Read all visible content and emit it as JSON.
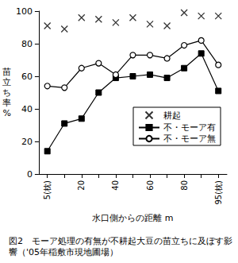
{
  "chart_data": {
    "type": "line",
    "title": "図2　モーア処理の有無が不耕起大豆の苗立ちに及ぼす影響（'05年稲敷市現地圃場）",
    "x_label": "水口側からの距離 m",
    "y_label": "苗立ち率%",
    "categories": [
      "5(枕)",
      null,
      "20",
      null,
      "40",
      null,
      "60",
      null,
      "80",
      null,
      "95(枕)"
    ],
    "series": [
      {
        "name": "耕起",
        "type": "scatter",
        "marker": "x",
        "color": "#000000",
        "values": [
          91,
          89,
          96,
          95,
          93,
          96,
          92,
          91,
          99,
          97,
          97
        ]
      },
      {
        "name": "不・モーア有",
        "type": "line",
        "marker": "square",
        "line_style": "solid",
        "color": "#000000",
        "values": [
          14,
          31,
          34,
          50,
          59,
          60,
          61,
          59,
          65,
          74,
          51
        ]
      },
      {
        "name": "不・モーア無",
        "type": "line",
        "marker": "circle",
        "line_style": "solid",
        "color": "#000000",
        "values": [
          54,
          53,
          65,
          68,
          61,
          73,
          73,
          71,
          79,
          82,
          67
        ]
      }
    ],
    "ylim": [
      0,
      100
    ],
    "yticks": [
      0,
      20,
      40,
      60,
      80,
      100
    ],
    "grid": false,
    "legend": "lower right"
  }
}
